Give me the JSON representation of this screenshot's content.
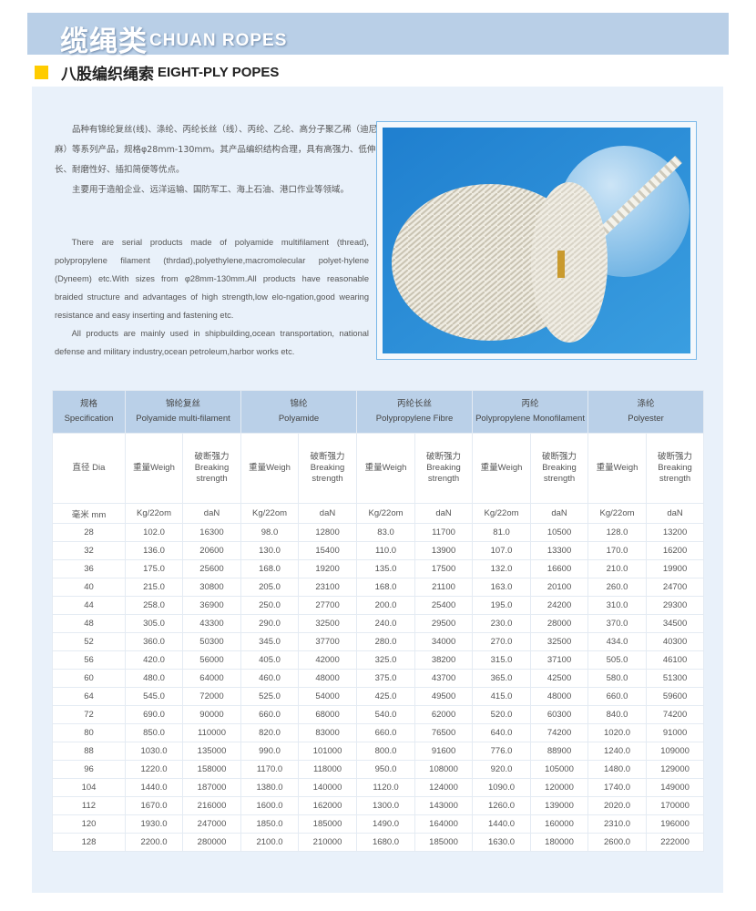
{
  "banner": {
    "title_cn": "缆绳类",
    "title_en": "CHUAN ROPES"
  },
  "section": {
    "title_cn": "八股编织绳索",
    "title_en": "EIGHT-PLY POPES",
    "marker_color": "#ffcc00"
  },
  "description_cn": [
    "品种有锦纶复丝(线)、涤纶、丙纶长丝（线）、丙纶、乙纶、高分子聚乙稀（迪尼麻）等系列产品，规格φ28mm-130mm。其产品编织结构合理，具有高强力、低伸长、耐磨性好、插扣简便等优点。",
    "主要用于造船企业、远洋运输、国防军工、海上石油、港口作业等领域。"
  ],
  "description_en": [
    "There are serial products made of polyamide multifilament (thread), polypropylene filament (thrdad),polyethylene,macromolecular polyet-hylene (Dyneem) etc.With sizes from φ28mm-130mm.All products have reasonable braided structure and advantages of high strength,low elo-ngation,good wearing resistance and easy  inserting and fastening etc.",
    "All products are mainly used in shipbuilding,ocean transportation, national defense and military industry,ocean petroleum,harbor works etc."
  ],
  "photo": {
    "subject": "eight-ply braided rope coil",
    "background_color": "#2b8fd6"
  },
  "table": {
    "spec_header": {
      "cn": "规格",
      "en": "Specification"
    },
    "materials": [
      {
        "cn": "锦纶复丝",
        "en": "Polyamide multi-filament"
      },
      {
        "cn": "锦纶",
        "en": "Polyamide"
      },
      {
        "cn": "丙纶长丝",
        "en": "Polypropylene Fibre"
      },
      {
        "cn": "丙纶",
        "en": "Polypropylene Monofilament"
      },
      {
        "cn": "涤纶",
        "en": "Polyester"
      }
    ],
    "dia_header": "直径 Dia",
    "weight_header": "重量Weigh",
    "strength_header": {
      "cn": "破断强力",
      "en1": "Breaking",
      "en2": "strength"
    },
    "dia_unit": "毫米 mm",
    "weight_unit": "Kg/22om",
    "strength_unit": "daN",
    "rows": [
      [
        "28",
        "102.0",
        "16300",
        "98.0",
        "12800",
        "83.0",
        "11700",
        "81.0",
        "10500",
        "128.0",
        "13200"
      ],
      [
        "32",
        "136.0",
        "20600",
        "130.0",
        "15400",
        "110.0",
        "13900",
        "107.0",
        "13300",
        "170.0",
        "16200"
      ],
      [
        "36",
        "175.0",
        "25600",
        "168.0",
        "19200",
        "135.0",
        "17500",
        "132.0",
        "16600",
        "210.0",
        "19900"
      ],
      [
        "40",
        "215.0",
        "30800",
        "205.0",
        "23100",
        "168.0",
        "21100",
        "163.0",
        "20100",
        "260.0",
        "24700"
      ],
      [
        "44",
        "258.0",
        "36900",
        "250.0",
        "27700",
        "200.0",
        "25400",
        "195.0",
        "24200",
        "310.0",
        "29300"
      ],
      [
        "48",
        "305.0",
        "43300",
        "290.0",
        "32500",
        "240.0",
        "29500",
        "230.0",
        "28000",
        "370.0",
        "34500"
      ],
      [
        "52",
        "360.0",
        "50300",
        "345.0",
        "37700",
        "280.0",
        "34000",
        "270.0",
        "32500",
        "434.0",
        "40300"
      ],
      [
        "56",
        "420.0",
        "56000",
        "405.0",
        "42000",
        "325.0",
        "38200",
        "315.0",
        "37100",
        "505.0",
        "46100"
      ],
      [
        "60",
        "480.0",
        "64000",
        "460.0",
        "48000",
        "375.0",
        "43700",
        "365.0",
        "42500",
        "580.0",
        "51300"
      ],
      [
        "64",
        "545.0",
        "72000",
        "525.0",
        "54000",
        "425.0",
        "49500",
        "415.0",
        "48000",
        "660.0",
        "59600"
      ],
      [
        "72",
        "690.0",
        "90000",
        "660.0",
        "68000",
        "540.0",
        "62000",
        "520.0",
        "60300",
        "840.0",
        "74200"
      ],
      [
        "80",
        "850.0",
        "110000",
        "820.0",
        "83000",
        "660.0",
        "76500",
        "640.0",
        "74200",
        "1020.0",
        "91000"
      ],
      [
        "88",
        "1030.0",
        "135000",
        "990.0",
        "101000",
        "800.0",
        "91600",
        "776.0",
        "88900",
        "1240.0",
        "109000"
      ],
      [
        "96",
        "1220.0",
        "158000",
        "1170.0",
        "118000",
        "950.0",
        "108000",
        "920.0",
        "105000",
        "1480.0",
        "129000"
      ],
      [
        "104",
        "1440.0",
        "187000",
        "1380.0",
        "140000",
        "1120.0",
        "124000",
        "1090.0",
        "120000",
        "1740.0",
        "149000"
      ],
      [
        "112",
        "1670.0",
        "216000",
        "1600.0",
        "162000",
        "1300.0",
        "143000",
        "1260.0",
        "139000",
        "2020.0",
        "170000"
      ],
      [
        "120",
        "1930.0",
        "247000",
        "1850.0",
        "185000",
        "1490.0",
        "164000",
        "1440.0",
        "160000",
        "2310.0",
        "196000"
      ],
      [
        "128",
        "2200.0",
        "280000",
        "2100.0",
        "210000",
        "1680.0",
        "185000",
        "1630.0",
        "180000",
        "2600.0",
        "222000"
      ]
    ]
  }
}
